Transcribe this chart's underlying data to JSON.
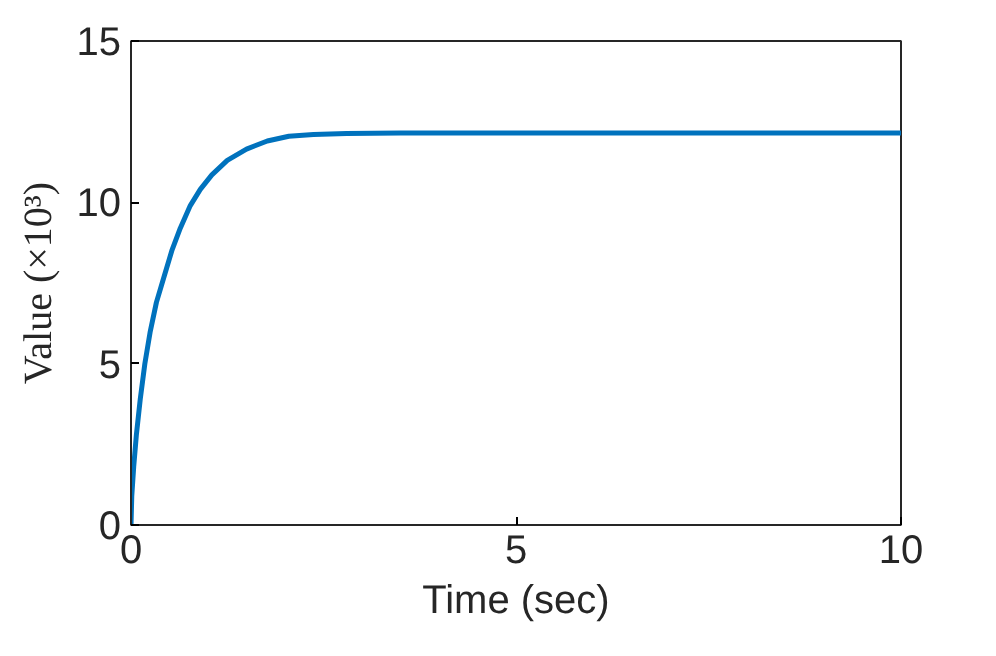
{
  "chart_data": {
    "type": "line",
    "xlabel": "Time (sec)",
    "ylabel": "Value (×10³)",
    "x": [
      0,
      0.01,
      0.035,
      0.07,
      0.12,
      0.18,
      0.25,
      0.33,
      0.43,
      0.53,
      0.64,
      0.77,
      0.9,
      1.05,
      1.25,
      1.5,
      1.77,
      2.05,
      2.37,
      2.8,
      3.5,
      5,
      7.5,
      10
    ],
    "series": [
      {
        "color": "#0072bd",
        "values": [
          0,
          0.9,
          1.8,
          2.8,
          3.9,
          5.0,
          6.0,
          6.9,
          7.7,
          8.5,
          9.2,
          9.9,
          10.4,
          10.85,
          11.3,
          11.65,
          11.9,
          12.05,
          12.1,
          12.13,
          12.15,
          12.15,
          12.15,
          12.15
        ]
      }
    ],
    "xlim": [
      0,
      10
    ],
    "ylim": [
      0,
      15
    ],
    "xticks": [
      0,
      5,
      10
    ],
    "yticks": [
      0,
      5,
      10,
      15
    ],
    "grid": false,
    "line_style": "solid",
    "marker": "none"
  }
}
